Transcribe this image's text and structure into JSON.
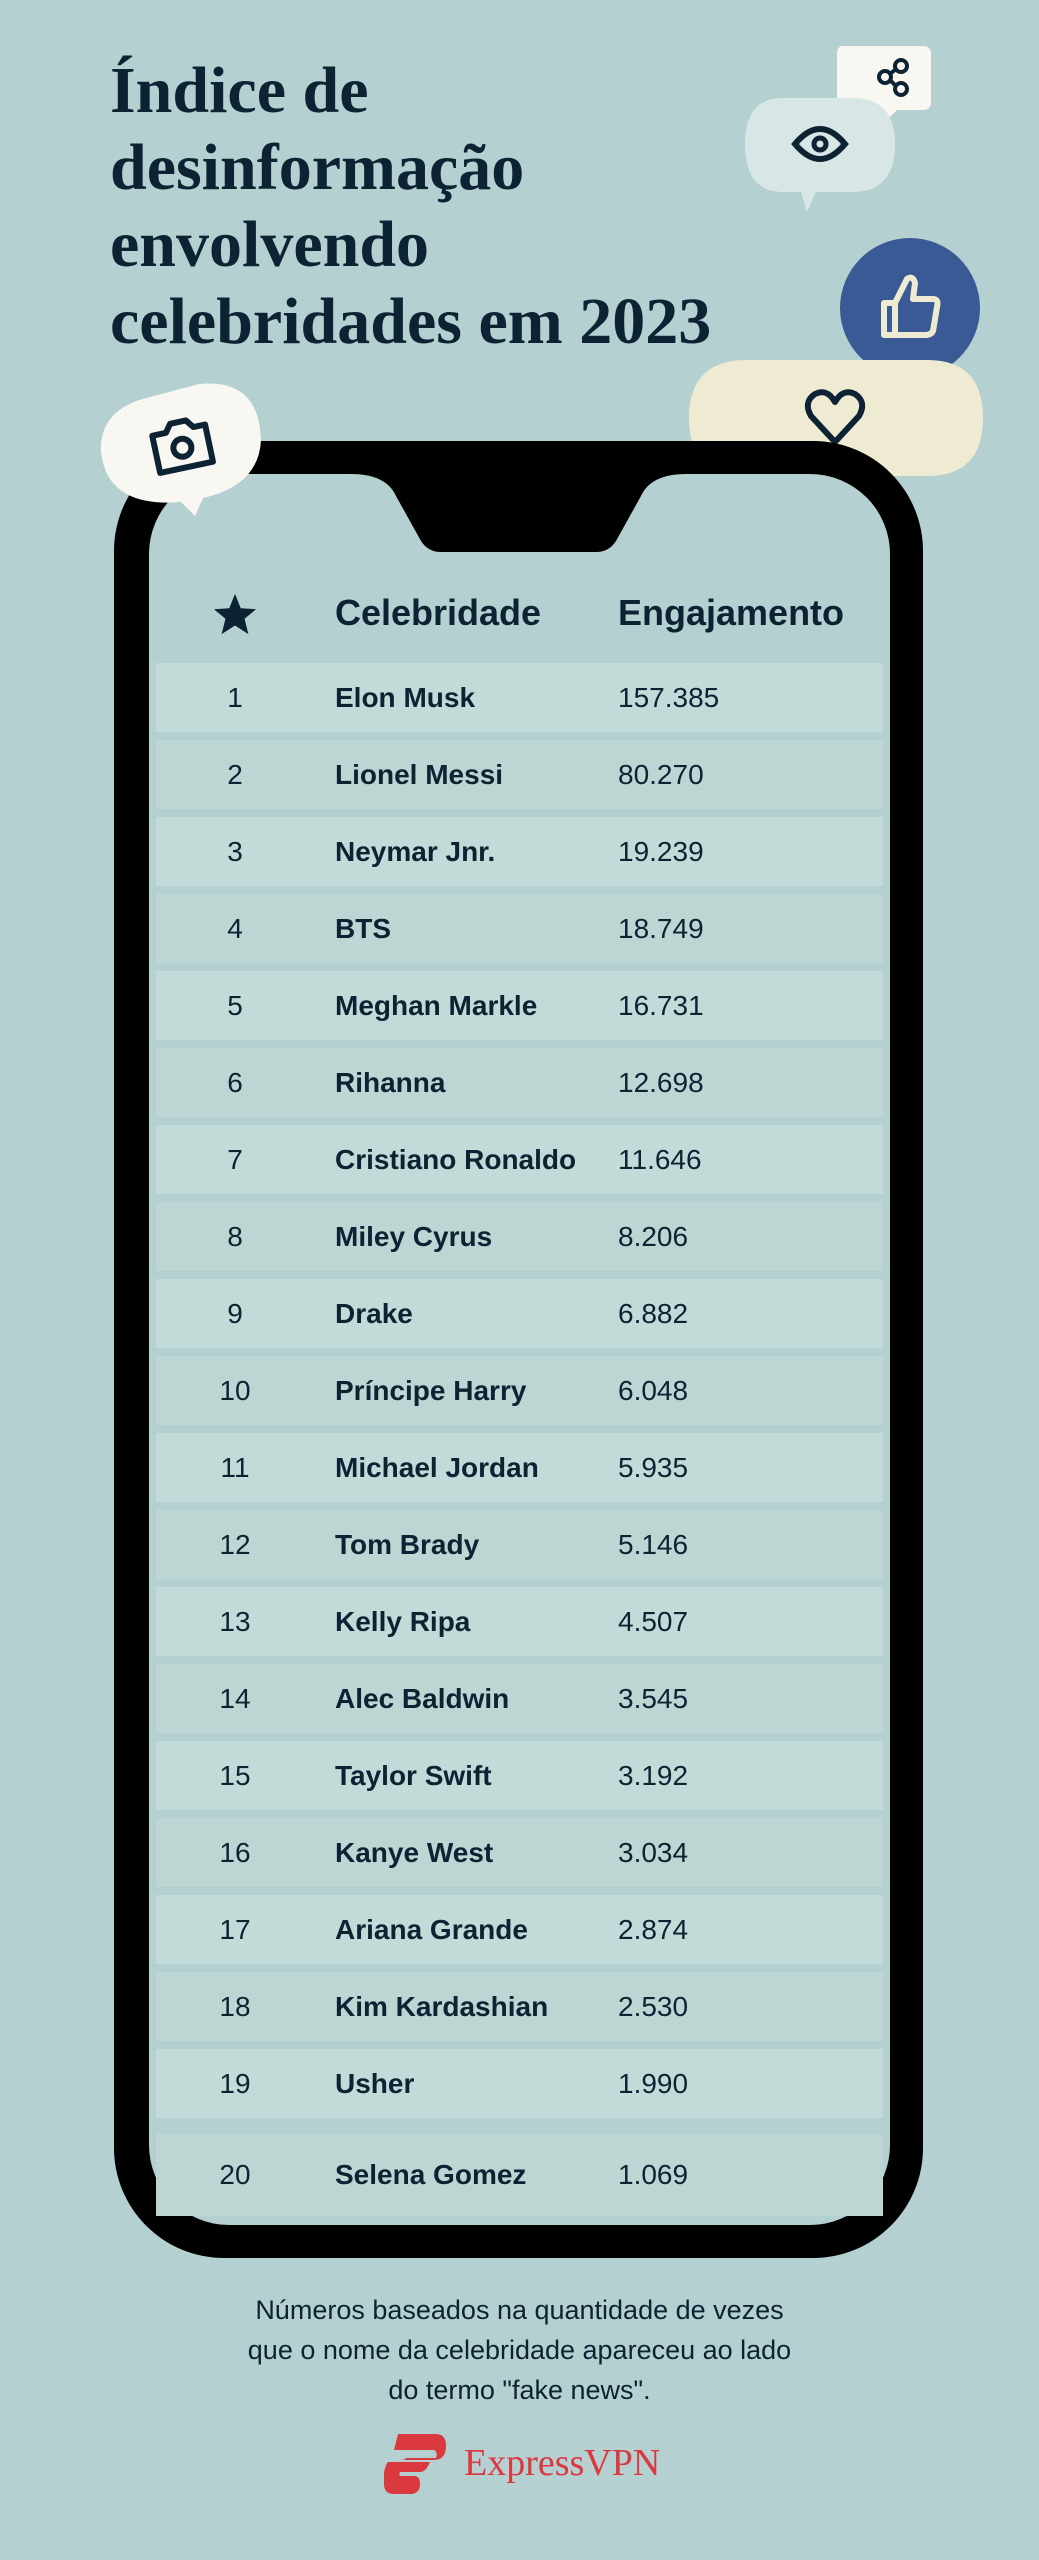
{
  "title": {
    "lines": [
      "Índice de",
      "desinformação",
      "envolvendo",
      "celebridades em 2023"
    ]
  },
  "table": {
    "rank_header_icon": "star-icon",
    "headers": {
      "name": "Celebridade",
      "value": "Engajamento"
    },
    "rows": [
      {
        "rank": "1",
        "name": "Elon Musk",
        "value": "157.385"
      },
      {
        "rank": "2",
        "name": "Lionel Messi",
        "value": "80.270"
      },
      {
        "rank": "3",
        "name": "Neymar Jnr.",
        "value": "19.239"
      },
      {
        "rank": "4",
        "name": "BTS",
        "value": "18.749"
      },
      {
        "rank": "5",
        "name": "Meghan Markle",
        "value": "16.731"
      },
      {
        "rank": "6",
        "name": "Rihanna",
        "value": "12.698"
      },
      {
        "rank": "7",
        "name": "Cristiano Ronaldo",
        "value": "11.646"
      },
      {
        "rank": "8",
        "name": "Miley Cyrus",
        "value": "8.206"
      },
      {
        "rank": "9",
        "name": "Drake",
        "value": "6.882"
      },
      {
        "rank": "10",
        "name": "Príncipe Harry",
        "value": "6.048"
      },
      {
        "rank": "11",
        "name": "Michael Jordan",
        "value": "5.935"
      },
      {
        "rank": "12",
        "name": "Tom Brady",
        "value": "5.146"
      },
      {
        "rank": "13",
        "name": "Kelly Ripa",
        "value": "4.507"
      },
      {
        "rank": "14",
        "name": "Alec Baldwin",
        "value": "3.545"
      },
      {
        "rank": "15",
        "name": "Taylor Swift",
        "value": "3.192"
      },
      {
        "rank": "16",
        "name": "Kanye West",
        "value": "3.034"
      },
      {
        "rank": "17",
        "name": "Ariana Grande",
        "value": "2.874"
      },
      {
        "rank": "18",
        "name": "Kim Kardashian",
        "value": "2.530"
      },
      {
        "rank": "19",
        "name": "Usher",
        "value": "1.990"
      },
      {
        "rank": "20",
        "name": "Selena Gomez",
        "value": "1.069"
      }
    ]
  },
  "footnote": {
    "lines": [
      "Números baseados na quantidade de vezes",
      "que o nome da celebridade apareceu ao lado",
      "do termo \"fake news\"."
    ]
  },
  "brand": {
    "name": "ExpressVPN",
    "color": "#da3940"
  },
  "colors": {
    "background": "#b5d0d0",
    "text": "#0d2233",
    "row_odd": "#c3dbd8",
    "row_even": "#bdd5d3",
    "like_bubble": "#395a94",
    "heart_bubble": "#efebd3"
  },
  "decorations": [
    "share-icon",
    "eye-icon",
    "thumbs-up-icon",
    "heart-icon",
    "camera-icon"
  ]
}
